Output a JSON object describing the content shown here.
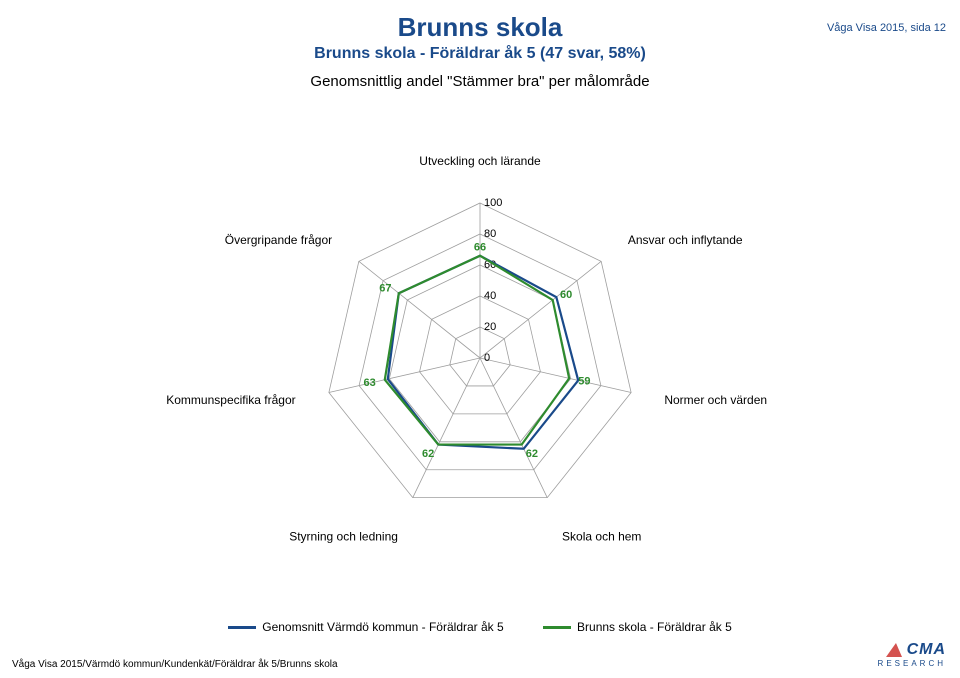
{
  "header": {
    "title": "Brunns skola",
    "title_color": "#1a4a8a",
    "title_fontsize": 26,
    "subtitle": "Brunns skola - Föräldrar åk 5 (47 svar, 58%)",
    "subtitle_color": "#1a4a8a",
    "subtitle_fontsize": 16,
    "description": "Genomsnittlig andel \"Stämmer bra\" per målområde",
    "description_fontsize": 15,
    "top_right": "Våga Visa 2015, sida 12",
    "top_right_color": "#1a4a8a"
  },
  "chart": {
    "type": "radar",
    "axes": [
      "Utveckling och lärande",
      "Ansvar och inflytande",
      "Normer och värden",
      "Skola och hem",
      "Styrning och ledning",
      "Kommunspecifika frågor",
      "Övergripande frågor"
    ],
    "rings": [
      0,
      20,
      40,
      60,
      80,
      100
    ],
    "max": 100,
    "grid_stroke": "#9e9e9e",
    "grid_stroke_width": 0.8,
    "background": "#ffffff",
    "series": [
      {
        "name": "Genomsnitt Värmdö kommun - Föräldrar åk 5",
        "color": "#1a4a8a",
        "stroke_width": 2.2,
        "values": [
          66,
          63,
          65,
          65,
          62,
          61,
          67
        ],
        "show_value_labels": false
      },
      {
        "name": "Brunns skola - Föräldrar åk 5",
        "color": "#2e8b2e",
        "stroke_width": 2.2,
        "values": [
          66,
          60,
          59,
          62,
          62,
          63,
          67
        ],
        "show_value_labels": true
      }
    ],
    "value_label_color": "#2e8b2e",
    "axis_label_fontsize": 12
  },
  "footer": {
    "text": "Våga Visa 2015/Värmdö kommun/Kundenkät/Föräldrar åk 5/Brunns skola"
  },
  "logo": {
    "top": "CMA",
    "bottom": "RESEARCH"
  }
}
